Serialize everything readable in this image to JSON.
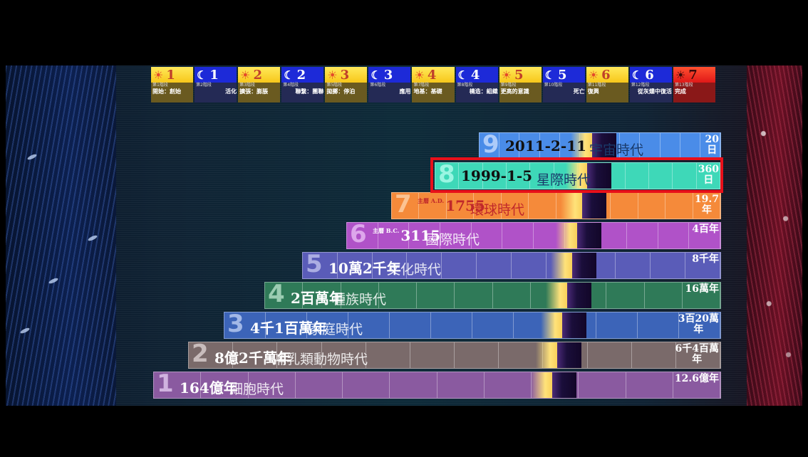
{
  "stages": [
    {
      "glyph": "☀",
      "num": "1",
      "type": "sun",
      "sub": "第1階段",
      "name": "開始：創始"
    },
    {
      "glyph": "☾",
      "num": "1",
      "type": "moon",
      "sub": "第2階段",
      "name": "活化"
    },
    {
      "glyph": "☀",
      "num": "2",
      "type": "sun",
      "sub": "第3階段",
      "name": "擴張：膨脹"
    },
    {
      "glyph": "☾",
      "num": "2",
      "type": "moon",
      "sub": "第4階段",
      "name": "聯繫：團聯"
    },
    {
      "glyph": "☀",
      "num": "3",
      "type": "sun",
      "sub": "第5階段",
      "name": "拋擲：停泊"
    },
    {
      "glyph": "☾",
      "num": "3",
      "type": "moon",
      "sub": "第6階段",
      "name": "應用"
    },
    {
      "glyph": "☀",
      "num": "4",
      "type": "sun",
      "sub": "第7階段",
      "name": "地基：基礎"
    },
    {
      "glyph": "☾",
      "num": "4",
      "type": "moon",
      "sub": "第8階段",
      "name": "構造：組織"
    },
    {
      "glyph": "☀",
      "num": "5",
      "type": "sun",
      "sub": "第9階段",
      "name": "更高的意識"
    },
    {
      "glyph": "☾",
      "num": "5",
      "type": "moon",
      "sub": "第10階段",
      "name": "死亡"
    },
    {
      "glyph": "☀",
      "num": "6",
      "type": "sun",
      "sub": "第11階段",
      "name": "復興"
    },
    {
      "glyph": "☾",
      "num": "6",
      "type": "moon",
      "sub": "第12階段",
      "name": "從灰燼中復活"
    },
    {
      "glyph": "☀",
      "num": "7",
      "type": "final",
      "sub": "第13階段",
      "name": "完成"
    }
  ],
  "rows": [
    {
      "num": "9",
      "date": "2011-2-11",
      "era": "宇宙時代",
      "duration": "20\n日",
      "color": "#4a8ce8",
      "num_color": "#cfe0ff"
    },
    {
      "num": "8",
      "date": "1999-1-5",
      "era": "星際時代",
      "duration": "360\n日",
      "color": "#3ed8b8",
      "num_color": "#b9fff0"
    },
    {
      "num": "7",
      "date": "1755",
      "date_prefix": "主曆 A.D.",
      "era": "環球時代",
      "duration": "19.7\n年",
      "color": "#f58a3a",
      "num_color": "#ffd7b0"
    },
    {
      "num": "6",
      "date": "3115",
      "date_prefix": "主曆 B.C.",
      "era": "國際時代",
      "duration": "4百年",
      "color": "#b052c8",
      "num_color": "#ecc3f7"
    },
    {
      "num": "5",
      "date": "10萬2千年",
      "era": "文化時代",
      "duration": "8千年",
      "color": "#5a5cb8",
      "num_color": "#c7c8f0"
    },
    {
      "num": "4",
      "date": "2百萬年",
      "era": "種族時代",
      "duration": "16萬年",
      "color": "#2f7a58",
      "num_color": "#bfe8d0"
    },
    {
      "num": "3",
      "date": "4千1百萬年",
      "era": "家庭時代",
      "duration": "3百20萬\n年",
      "color": "#3c64b8",
      "num_color": "#c4d4f7"
    },
    {
      "num": "2",
      "date": "8億2千萬年",
      "era": "哺乳類動物時代",
      "duration": "6千4百萬\n年",
      "color": "#7a6a6a",
      "num_color": "#e2d8d8"
    },
    {
      "num": "1",
      "date": "164億年",
      "era": "細胞時代",
      "duration": "12.6億年",
      "color": "#8a5aa0",
      "num_color": "#e8d0f4"
    }
  ]
}
